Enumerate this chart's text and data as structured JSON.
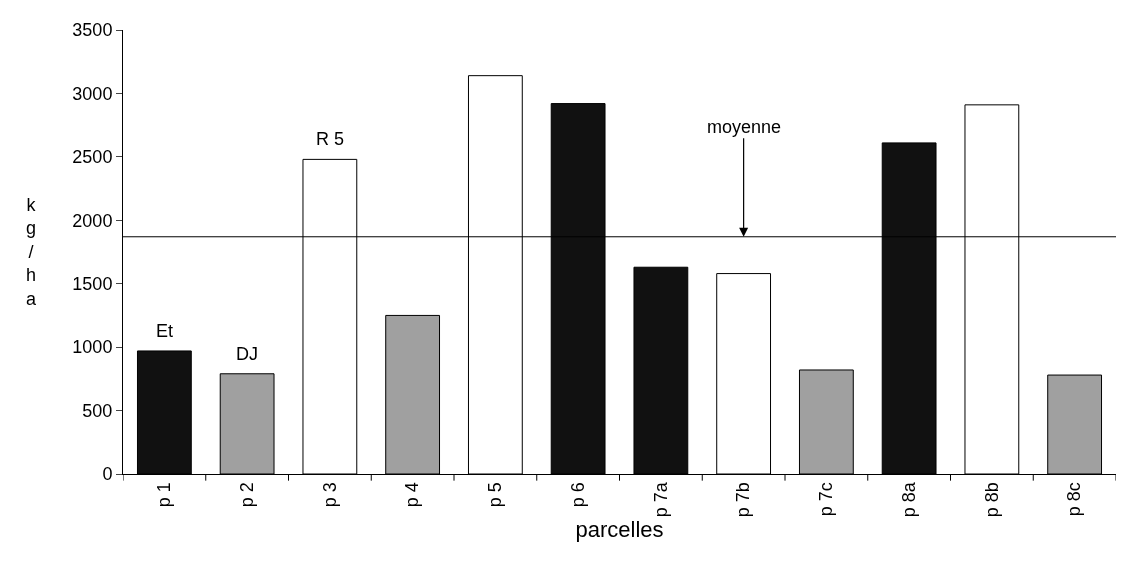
{
  "chart_data": {
    "type": "bar",
    "xlabel": "parcelles",
    "ylabel": "kg/ha",
    "categories": [
      "p 1",
      "p 2",
      "p 3",
      "p 4",
      "p 5",
      "p 6",
      "p 7a",
      "p 7b",
      "p 7c",
      "p 8a",
      "p 8b",
      "p 8c"
    ],
    "values": [
      970,
      790,
      2480,
      1250,
      3140,
      2920,
      1630,
      1580,
      820,
      2610,
      2910,
      780
    ],
    "colors": [
      "#111111",
      "#a0a0a0",
      "#ffffff",
      "#a0a0a0",
      "#ffffff",
      "#111111",
      "#111111",
      "#ffffff",
      "#a0a0a0",
      "#111111",
      "#ffffff",
      "#a0a0a0"
    ],
    "ylim": [
      0,
      3500
    ],
    "yticks": [
      0,
      500,
      1000,
      1500,
      2000,
      2500,
      3000,
      3500
    ],
    "ref_lines": [
      {
        "axis": "y",
        "value": 1870,
        "color": "#000000"
      }
    ],
    "annotations": [
      {
        "text": "Et",
        "x": "p 1",
        "y": 970
      },
      {
        "text": "DJ",
        "x": "p 2",
        "y": 790
      },
      {
        "text": "R 5",
        "x": "p 3",
        "y": 2480
      },
      {
        "text": "moyenne",
        "x": "p 7b",
        "y": 1870
      }
    ]
  }
}
